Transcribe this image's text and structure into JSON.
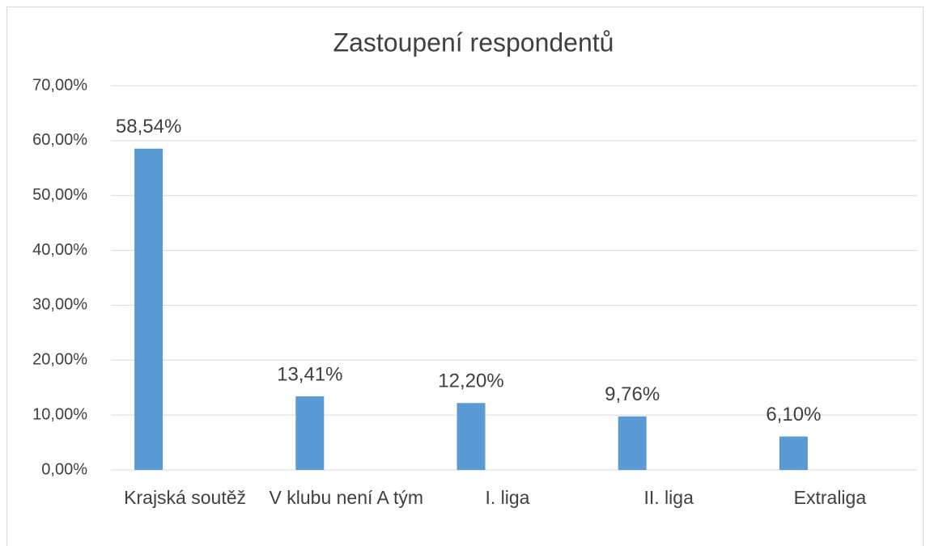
{
  "chart_data": {
    "type": "bar",
    "title": "Zastoupení respondentů",
    "categories": [
      "Krajská soutěž",
      "V klubu není A tým",
      "I. liga",
      "II. liga",
      "Extraliga"
    ],
    "values": [
      58.54,
      13.41,
      12.2,
      9.76,
      6.1
    ],
    "value_labels": [
      "58,54%",
      "13,41%",
      "12,20%",
      "9,76%",
      "6,10%"
    ],
    "color": "#5b9bd5",
    "ylim": [
      0,
      70
    ],
    "yticks": [
      {
        "value": 0,
        "label": "0,00%"
      },
      {
        "value": 10,
        "label": "10,00%"
      },
      {
        "value": 20,
        "label": "20,00%"
      },
      {
        "value": 30,
        "label": "30,00%"
      },
      {
        "value": 40,
        "label": "40,00%"
      },
      {
        "value": 50,
        "label": "50,00%"
      },
      {
        "value": 60,
        "label": "60,00%"
      },
      {
        "value": 70,
        "label": "70,00%"
      }
    ],
    "grid": true
  }
}
